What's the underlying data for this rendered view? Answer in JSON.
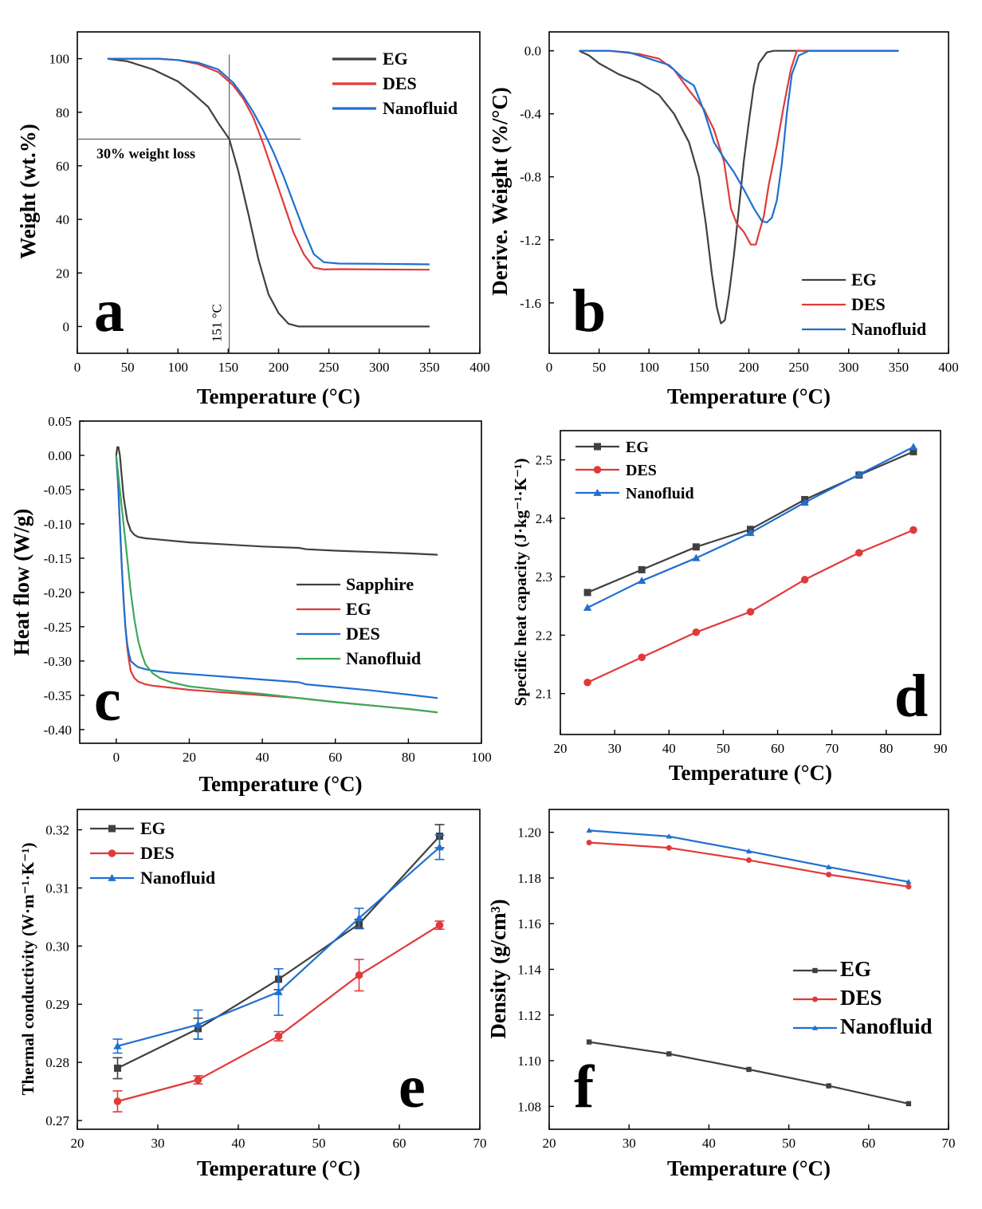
{
  "colors": {
    "EG": "#404040",
    "DES": "#e03a3a",
    "Nanofluid": "#1f6fd1",
    "Sapphire": "#404040",
    "Nanofluid_c": "#3aaa5a"
  },
  "chart_data": [
    {
      "id": "a",
      "type": "line",
      "panel_label": "a",
      "xlabel": "Temperature (°C)",
      "ylabel": "Weight (wt.%)",
      "xlim": [
        0,
        400
      ],
      "ylim": [
        -10,
        110
      ],
      "xticks": [
        0,
        50,
        100,
        150,
        200,
        250,
        300,
        350,
        400
      ],
      "yticks": [
        0,
        20,
        40,
        60,
        80,
        100
      ],
      "legend_position": "top-right",
      "annotations": {
        "hline_y": 70,
        "hline_label": "30% weight loss",
        "vline_x": 151,
        "vline_label": "151 °C"
      },
      "series": [
        {
          "name": "EG",
          "color_key": "EG",
          "x": [
            30,
            50,
            75,
            100,
            115,
            130,
            140,
            151,
            160,
            170,
            180,
            190,
            200,
            210,
            220,
            230,
            260,
            300,
            350
          ],
          "y": [
            100,
            99,
            96,
            91.5,
            87,
            82,
            76,
            70,
            58,
            42,
            25,
            12,
            5,
            1,
            0,
            0,
            0,
            0,
            0
          ]
        },
        {
          "name": "DES",
          "color_key": "DES",
          "x": [
            30,
            50,
            80,
            100,
            120,
            140,
            155,
            165,
            175,
            185,
            195,
            205,
            215,
            225,
            235,
            245,
            260,
            300,
            350
          ],
          "y": [
            100,
            100,
            100,
            99.5,
            98,
            95,
            90,
            85,
            78,
            68,
            57,
            46,
            35,
            27,
            22,
            21.3,
            21.4,
            21.3,
            21.2
          ]
        },
        {
          "name": "Nanofluid",
          "color_key": "Nanofluid",
          "x": [
            30,
            50,
            80,
            100,
            120,
            140,
            155,
            165,
            175,
            185,
            195,
            205,
            215,
            225,
            235,
            245,
            260,
            300,
            350
          ],
          "y": [
            100,
            100,
            100,
            99.5,
            98.5,
            96,
            91,
            86,
            80,
            73,
            65,
            56,
            46,
            36,
            27,
            24,
            23.5,
            23.4,
            23.2
          ]
        }
      ]
    },
    {
      "id": "b",
      "type": "line",
      "panel_label": "b",
      "xlabel": "Temperature (°C)",
      "ylabel": "Derive. Weight (%/°C)",
      "xlim": [
        0,
        400
      ],
      "ylim": [
        -1.92,
        0.12
      ],
      "xticks": [
        0,
        50,
        100,
        150,
        200,
        250,
        300,
        350,
        400
      ],
      "yticks": [
        "0.0",
        "-0.4",
        "-0.8",
        "-1.2",
        "-1.6"
      ],
      "legend_position": "bottom-right",
      "series": [
        {
          "name": "EG",
          "color_key": "EG",
          "x": [
            30,
            40,
            50,
            70,
            90,
            110,
            125,
            140,
            150,
            157,
            163,
            168,
            172,
            176,
            180,
            185,
            190,
            195,
            200,
            205,
            210,
            218,
            225,
            235,
            260,
            300,
            350
          ],
          "y": [
            0,
            -0.03,
            -0.08,
            -0.15,
            -0.2,
            -0.28,
            -0.4,
            -0.58,
            -0.8,
            -1.1,
            -1.42,
            -1.63,
            -1.73,
            -1.71,
            -1.55,
            -1.3,
            -1.0,
            -0.7,
            -0.45,
            -0.22,
            -0.08,
            -0.01,
            0,
            0,
            0,
            0,
            0
          ]
        },
        {
          "name": "DES",
          "color_key": "DES",
          "x": [
            30,
            60,
            90,
            110,
            125,
            140,
            155,
            165,
            175,
            182,
            188,
            195,
            202,
            207,
            210,
            215,
            220,
            228,
            235,
            242,
            248,
            255,
            300,
            350
          ],
          "y": [
            0,
            0,
            -0.02,
            -0.05,
            -0.12,
            -0.25,
            -0.37,
            -0.5,
            -0.7,
            -1.0,
            -1.1,
            -1.15,
            -1.23,
            -1.23,
            -1.16,
            -1.05,
            -0.85,
            -0.6,
            -0.35,
            -0.12,
            0,
            0,
            0,
            0
          ]
        },
        {
          "name": "Nanofluid",
          "color_key": "Nanofluid",
          "x": [
            30,
            60,
            80,
            100,
            120,
            135,
            145,
            155,
            165,
            175,
            185,
            195,
            205,
            213,
            218,
            223,
            228,
            233,
            238,
            243,
            250,
            260,
            300,
            350
          ],
          "y": [
            0,
            0,
            -0.01,
            -0.05,
            -0.09,
            -0.18,
            -0.22,
            -0.38,
            -0.58,
            -0.68,
            -0.77,
            -0.88,
            -1.0,
            -1.08,
            -1.09,
            -1.06,
            -0.95,
            -0.72,
            -0.4,
            -0.15,
            -0.03,
            0,
            0,
            0
          ]
        }
      ]
    },
    {
      "id": "c",
      "type": "line",
      "panel_label": "c",
      "xlabel": "Temperature (°C)",
      "ylabel": "Heat flow (W/g)",
      "xlim": [
        -10,
        100
      ],
      "ylim": [
        -0.42,
        0.05
      ],
      "xticks": [
        0,
        20,
        40,
        60,
        80,
        100
      ],
      "yticks": [
        "0.05",
        "0.00",
        "-0.05",
        "-0.10",
        "-0.15",
        "-0.20",
        "-0.25",
        "-0.30",
        "-0.35",
        "-0.40"
      ],
      "legend_position": "right",
      "series": [
        {
          "name": "Sapphire",
          "color_key": "Sapphire",
          "x": [
            0,
            0.3,
            0.6,
            1,
            1.5,
            2,
            3,
            4,
            5,
            6,
            8,
            10,
            20,
            30,
            40,
            50,
            52,
            60,
            70,
            80,
            88
          ],
          "y": [
            0.0,
            0.012,
            0.012,
            0.0,
            -0.03,
            -0.06,
            -0.095,
            -0.11,
            -0.116,
            -0.119,
            -0.121,
            -0.122,
            -0.127,
            -0.13,
            -0.133,
            -0.135,
            -0.137,
            -0.139,
            -0.141,
            -0.143,
            -0.145
          ]
        },
        {
          "name": "EG",
          "color_key": "DES",
          "x": [
            0,
            0.5,
            1,
            1.5,
            2,
            2.5,
            3,
            3.5,
            4,
            5,
            6,
            8,
            10,
            15,
            20,
            30,
            40,
            50,
            60,
            70,
            80,
            88
          ],
          "y": [
            0.0,
            -0.04,
            -0.1,
            -0.16,
            -0.21,
            -0.25,
            -0.28,
            -0.3,
            -0.315,
            -0.325,
            -0.33,
            -0.334,
            -0.336,
            -0.339,
            -0.342,
            -0.346,
            -0.35,
            -0.354,
            -0.36,
            -0.365,
            -0.37,
            -0.375
          ]
        },
        {
          "name": "DES",
          "color_key": "Nanofluid",
          "x": [
            0,
            0.5,
            1,
            1.5,
            2,
            2.5,
            3,
            3.5,
            4,
            5,
            6,
            8,
            10,
            15,
            20,
            30,
            40,
            50,
            52,
            60,
            70,
            80,
            88
          ],
          "y": [
            0.0,
            -0.04,
            -0.1,
            -0.16,
            -0.21,
            -0.25,
            -0.275,
            -0.29,
            -0.3,
            -0.305,
            -0.309,
            -0.312,
            -0.314,
            -0.317,
            -0.319,
            -0.323,
            -0.327,
            -0.331,
            -0.334,
            -0.338,
            -0.343,
            -0.349,
            -0.354
          ]
        },
        {
          "name": "Nanofluid",
          "color_key": "Nanofluid_c",
          "x": [
            0,
            1,
            2,
            3,
            4,
            5,
            6,
            7,
            8,
            10,
            12,
            15,
            20,
            30,
            40,
            50,
            60,
            70,
            80,
            88
          ],
          "y": [
            0.0,
            -0.05,
            -0.1,
            -0.15,
            -0.2,
            -0.24,
            -0.27,
            -0.29,
            -0.305,
            -0.318,
            -0.325,
            -0.331,
            -0.337,
            -0.343,
            -0.348,
            -0.354,
            -0.36,
            -0.365,
            -0.37,
            -0.375
          ]
        }
      ]
    },
    {
      "id": "d",
      "type": "line",
      "panel_label": "d",
      "xlabel": "Temperature (°C)",
      "ylabel": "Specific heat capacity (J·kg⁻¹·K⁻¹)",
      "xlim": [
        20,
        90
      ],
      "ylim": [
        2.03,
        2.55
      ],
      "xticks": [
        20,
        30,
        40,
        50,
        60,
        70,
        80,
        90
      ],
      "yticks": [
        "2.1",
        "2.2",
        "2.3",
        "2.4",
        "2.5"
      ],
      "legend_position": "top-left",
      "x": [
        25,
        35,
        45,
        55,
        65,
        75,
        85
      ],
      "series": [
        {
          "name": "EG",
          "color_key": "EG",
          "marker": "square",
          "values": [
            2.273,
            2.312,
            2.351,
            2.381,
            2.432,
            2.474,
            2.514
          ]
        },
        {
          "name": "DES",
          "color_key": "DES",
          "marker": "circle",
          "values": [
            2.119,
            2.162,
            2.205,
            2.24,
            2.295,
            2.341,
            2.38
          ]
        },
        {
          "name": "Nanofluid",
          "color_key": "Nanofluid",
          "marker": "triangle",
          "values": [
            2.247,
            2.293,
            2.332,
            2.375,
            2.427,
            2.475,
            2.522
          ]
        }
      ]
    },
    {
      "id": "e",
      "type": "line",
      "panel_label": "e",
      "xlabel": "Temperature (°C)",
      "ylabel": "Thermal conductivity (W·m⁻¹·K⁻¹)",
      "xlim": [
        20,
        70
      ],
      "ylim": [
        0.2685,
        0.3235
      ],
      "xticks": [
        20,
        30,
        40,
        50,
        60,
        70
      ],
      "yticks": [
        "0.27",
        "0.28",
        "0.29",
        "0.30",
        "0.31",
        "0.32"
      ],
      "legend_position": "top-left",
      "x": [
        25,
        35,
        45,
        55,
        65
      ],
      "series": [
        {
          "name": "EG",
          "color_key": "EG",
          "marker": "square",
          "values": [
            0.279,
            0.2858,
            0.2943,
            0.3038,
            0.3189
          ],
          "errors": [
            0.0018,
            0.0018,
            0.0018,
            0.0008,
            0.002
          ]
        },
        {
          "name": "DES",
          "color_key": "DES",
          "marker": "circle",
          "values": [
            0.2733,
            0.277,
            0.2845,
            0.295,
            0.3036
          ],
          "errors": [
            0.0018,
            0.0007,
            0.0008,
            0.0027,
            0.0007
          ]
        },
        {
          "name": "Nanofluid",
          "color_key": "Nanofluid",
          "marker": "triangle",
          "values": [
            0.2828,
            0.2865,
            0.2921,
            0.3048,
            0.317
          ],
          "errors": [
            0.0012,
            0.0025,
            0.004,
            0.0017,
            0.0021
          ]
        }
      ]
    },
    {
      "id": "f",
      "type": "line",
      "panel_label": "f",
      "xlabel": "Temperature (°C)",
      "ylabel": "Density (g/cm³)",
      "xlim": [
        20,
        70
      ],
      "ylim": [
        1.07,
        1.21
      ],
      "xticks": [
        20,
        30,
        40,
        50,
        60,
        70
      ],
      "yticks": [
        "1.08",
        "1.10",
        "1.12",
        "1.14",
        "1.16",
        "1.18",
        "1.20"
      ],
      "legend_position": "right",
      "x": [
        25,
        35,
        45,
        55,
        65
      ],
      "series": [
        {
          "name": "EG",
          "color_key": "EG",
          "marker": "square-small",
          "values": [
            1.1082,
            1.103,
            1.0962,
            1.089,
            1.0812
          ]
        },
        {
          "name": "DES",
          "color_key": "DES",
          "marker": "circle-small",
          "values": [
            1.1955,
            1.1932,
            1.1878,
            1.1815,
            1.1762
          ]
        },
        {
          "name": "Nanofluid",
          "color_key": "Nanofluid",
          "marker": "triangle-small",
          "values": [
            1.2008,
            1.1982,
            1.1917,
            1.1848,
            1.1783
          ]
        }
      ]
    }
  ]
}
